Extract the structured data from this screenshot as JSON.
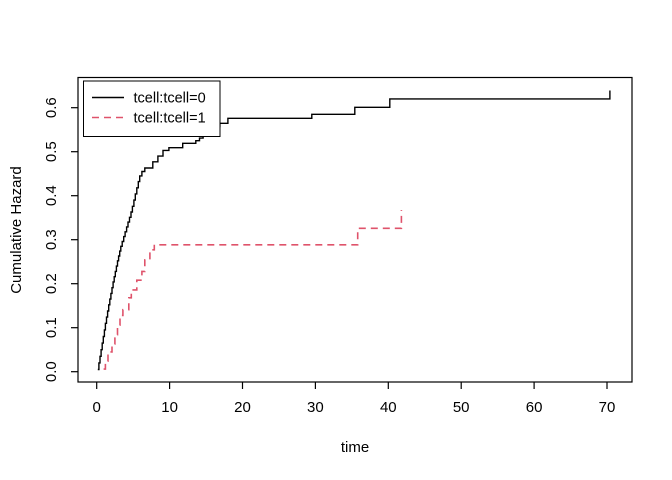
{
  "chart_data": {
    "type": "line",
    "subtype": "step",
    "title": "",
    "xlabel": "time",
    "ylabel": "Cumulative Hazard",
    "xlim": [
      0,
      70
    ],
    "ylim": [
      0.0,
      0.6
    ],
    "x_ticks": [
      0,
      10,
      20,
      30,
      40,
      50,
      60,
      70
    ],
    "x_tick_labels": [
      "0",
      "10",
      "20",
      "30",
      "40",
      "50",
      "60",
      "70"
    ],
    "y_ticks": [
      0.0,
      0.1,
      0.2,
      0.3,
      0.4,
      0.5,
      0.6
    ],
    "y_tick_labels": [
      "0.0",
      "0.1",
      "0.2",
      "0.3",
      "0.4",
      "0.5",
      "0.6"
    ],
    "grid": false,
    "legend": {
      "position": "topleft"
    },
    "series": [
      {
        "name": "tcell:tcell=0",
        "color": "#000000",
        "style": "solid",
        "points": [
          [
            0.15,
            0.005
          ],
          [
            0.3,
            0.02
          ],
          [
            0.45,
            0.035
          ],
          [
            0.6,
            0.05
          ],
          [
            0.75,
            0.065
          ],
          [
            0.9,
            0.08
          ],
          [
            1.05,
            0.095
          ],
          [
            1.2,
            0.11
          ],
          [
            1.35,
            0.124
          ],
          [
            1.5,
            0.138
          ],
          [
            1.65,
            0.152
          ],
          [
            1.8,
            0.165
          ],
          [
            1.95,
            0.178
          ],
          [
            2.1,
            0.191
          ],
          [
            2.25,
            0.204
          ],
          [
            2.4,
            0.216
          ],
          [
            2.55,
            0.228
          ],
          [
            2.7,
            0.24
          ],
          [
            2.85,
            0.252
          ],
          [
            3.0,
            0.263
          ],
          [
            3.15,
            0.274
          ],
          [
            3.3,
            0.285
          ],
          [
            3.5,
            0.296
          ],
          [
            3.7,
            0.307
          ],
          [
            3.9,
            0.318
          ],
          [
            4.1,
            0.329
          ],
          [
            4.3,
            0.34
          ],
          [
            4.5,
            0.351
          ],
          [
            4.7,
            0.363
          ],
          [
            4.9,
            0.376
          ],
          [
            5.1,
            0.39
          ],
          [
            5.3,
            0.404
          ],
          [
            5.5,
            0.418
          ],
          [
            5.7,
            0.432
          ],
          [
            5.9,
            0.445
          ],
          [
            6.2,
            0.455
          ],
          [
            6.6,
            0.463
          ],
          [
            7.7,
            0.477
          ],
          [
            8.4,
            0.49
          ],
          [
            9.1,
            0.503
          ],
          [
            9.9,
            0.509
          ],
          [
            11.8,
            0.519
          ],
          [
            13.6,
            0.525
          ],
          [
            14.1,
            0.531
          ],
          [
            14.6,
            0.537
          ],
          [
            15.1,
            0.543
          ],
          [
            15.6,
            0.55
          ],
          [
            16.2,
            0.557
          ],
          [
            16.9,
            0.5645
          ],
          [
            18.0,
            0.576
          ],
          [
            29.5,
            0.585
          ],
          [
            35.4,
            0.601
          ],
          [
            40.2,
            0.62
          ],
          [
            70.4,
            0.639
          ]
        ]
      },
      {
        "name": "tcell:tcell=1",
        "color": "#DF536B",
        "style": "dashed",
        "points": [
          [
            0.95,
            0.006
          ],
          [
            1.2,
            0.024
          ],
          [
            1.55,
            0.045
          ],
          [
            2.1,
            0.063
          ],
          [
            2.5,
            0.084
          ],
          [
            2.85,
            0.106
          ],
          [
            3.2,
            0.128
          ],
          [
            3.6,
            0.141
          ],
          [
            4.4,
            0.168
          ],
          [
            4.75,
            0.186
          ],
          [
            5.5,
            0.208
          ],
          [
            6.2,
            0.228
          ],
          [
            6.6,
            0.254
          ],
          [
            7.3,
            0.277
          ],
          [
            7.9,
            0.2885
          ],
          [
            35.8,
            0.326
          ],
          [
            41.8,
            0.3675
          ]
        ]
      }
    ]
  }
}
